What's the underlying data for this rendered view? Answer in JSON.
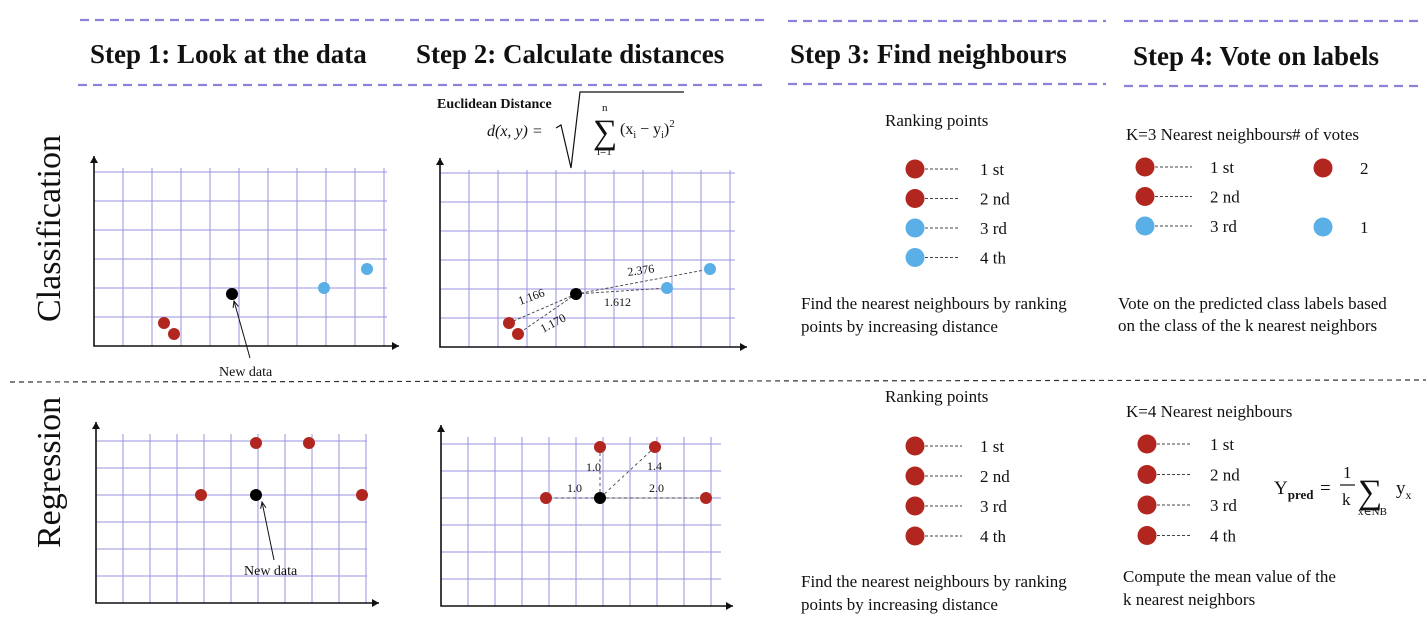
{
  "steps": [
    {
      "title": "Step 1: Look at the data"
    },
    {
      "title": "Step 2: Calculate distances"
    },
    {
      "title": "Step 3: Find neighbours"
    },
    {
      "title": "Step 4: Vote on labels"
    }
  ],
  "rows": {
    "classification": "Classification",
    "regression": "Regression"
  },
  "formula": {
    "label": "Euclidean Distance",
    "lhs": "d(x, y) =",
    "upper": "n",
    "lower": "i=1",
    "body": "(x",
    "sub_i": "i",
    "minus": " − y",
    "sub_i2": "i",
    "close": ")",
    "power": "2"
  },
  "classification": {
    "new_data_label": "New data",
    "distances": [
      "1.166",
      "1.170",
      "1.612",
      "2.376"
    ],
    "ranking_title": "Ranking points",
    "ranks": [
      "1 st",
      "2 nd",
      "3 rd",
      "4 th"
    ],
    "rank_colors": [
      "#b1271f",
      "#b1271f",
      "#5ab0e6",
      "#5ab0e6"
    ],
    "step3_desc": [
      "Find the nearest neighbours by ranking",
      "points by increasing distance"
    ],
    "k_title": "K=3 Nearest neighbours",
    "votes_title": "# of votes",
    "k_ranks": [
      "1 st",
      "2 nd",
      "3 rd"
    ],
    "k_colors": [
      "#b1271f",
      "#b1271f",
      "#5ab0e6"
    ],
    "votes": [
      {
        "color": "#b1271f",
        "count": "2"
      },
      {
        "color": "#5ab0e6",
        "count": "1"
      }
    ],
    "step4_desc": [
      "Vote on the predicted class labels based",
      "on the class of the k nearest neighbors"
    ]
  },
  "regression": {
    "new_data_label": "New data",
    "distances": [
      "1.0",
      "1.4",
      "1.0",
      "2.0"
    ],
    "ranking_title": "Ranking points",
    "ranks": [
      "1 st",
      "2 nd",
      "3 rd",
      "4 th"
    ],
    "step3_desc": [
      "Find the nearest neighbours by ranking",
      "points by increasing distance"
    ],
    "k_title": "K=4 Nearest neighbours",
    "k_ranks": [
      "1 st",
      "2 nd",
      "3 rd",
      "4 th"
    ],
    "step4_desc": [
      "Compute the mean value of the",
      "k nearest neighbors"
    ],
    "ypred": {
      "y": "Y",
      "sub": "pred",
      "eq": "=",
      "num": "1",
      "den": "k",
      "sum_sub": "x∈NB",
      "term": "y",
      "term_sub": "x"
    }
  },
  "colors": {
    "red": "#b1271f",
    "blue": "#5ab0e6",
    "new_point": "#000000",
    "grid": "#9a93e0"
  }
}
